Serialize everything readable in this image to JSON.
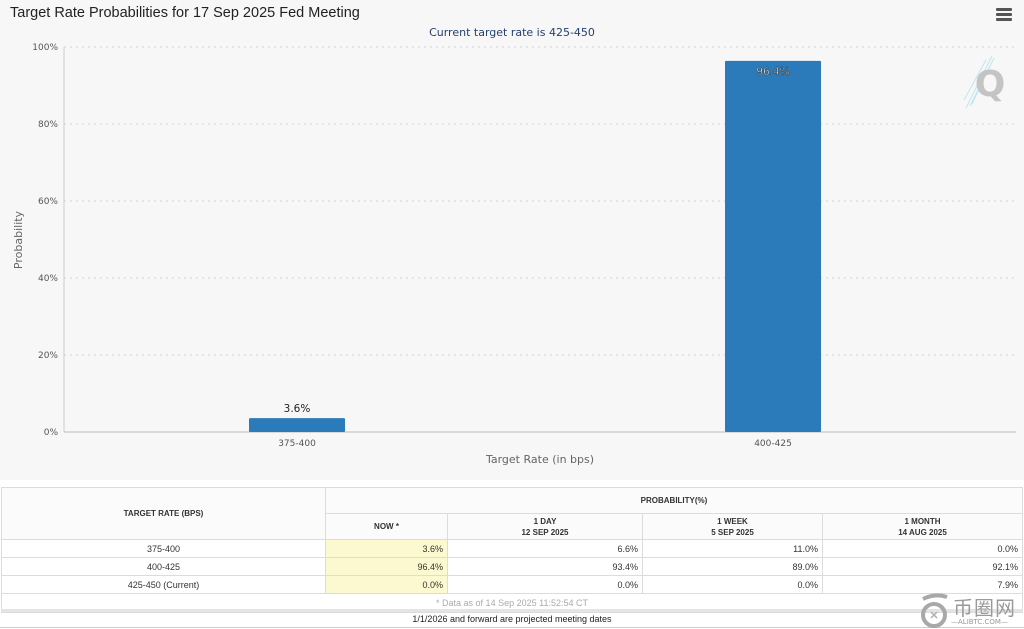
{
  "chart_data": {
    "type": "bar",
    "title": "Target Rate Probabilities for 17 Sep 2025 Fed Meeting",
    "subtitle": "Current target rate is 425-450",
    "xlabel": "Target Rate (in bps)",
    "ylabel": "Probability",
    "categories": [
      "375-400",
      "400-425"
    ],
    "values": [
      3.6,
      96.4
    ],
    "data_labels": [
      "3.6%",
      "96.4%"
    ],
    "ylim": [
      0,
      100
    ],
    "yticks": [
      0,
      20,
      40,
      60,
      80,
      100
    ],
    "ytick_labels": [
      "0%",
      "20%",
      "40%",
      "60%",
      "80%",
      "100%"
    ],
    "grid": true,
    "bar_color": "#2b7bba",
    "legend": "none"
  },
  "menu": {
    "icon": "hamburger-menu-icon"
  },
  "watermark": {
    "icon": "q-logo-icon",
    "text": "Q"
  },
  "table": {
    "col_header_rate": "TARGET RATE (BPS)",
    "col_header_prob": "PROBABILITY(%)",
    "sub_headers": [
      {
        "line1": "NOW *",
        "line2": ""
      },
      {
        "line1": "1 DAY",
        "line2": "12 SEP 2025"
      },
      {
        "line1": "1 WEEK",
        "line2": "5 SEP 2025"
      },
      {
        "line1": "1 MONTH",
        "line2": "14 AUG 2025"
      }
    ],
    "rows": [
      {
        "rate": "375-400",
        "now": "3.6%",
        "day": "6.6%",
        "week": "11.0%",
        "month": "0.0%"
      },
      {
        "rate": "400-425",
        "now": "96.4%",
        "day": "93.4%",
        "week": "89.0%",
        "month": "92.1%"
      },
      {
        "rate": "425-450 (Current)",
        "now": "0.0%",
        "day": "0.0%",
        "week": "0.0%",
        "month": "7.9%"
      }
    ],
    "footnote": "* Data as of 14 Sep 2025 11:52:54 CT",
    "projected_note": "1/1/2026 and forward are projected meeting dates",
    "now_highlight_color": "#fcf8cf"
  },
  "site_logo": {
    "cn": "币圈网",
    "en": "—ALIBTC.COM—"
  }
}
